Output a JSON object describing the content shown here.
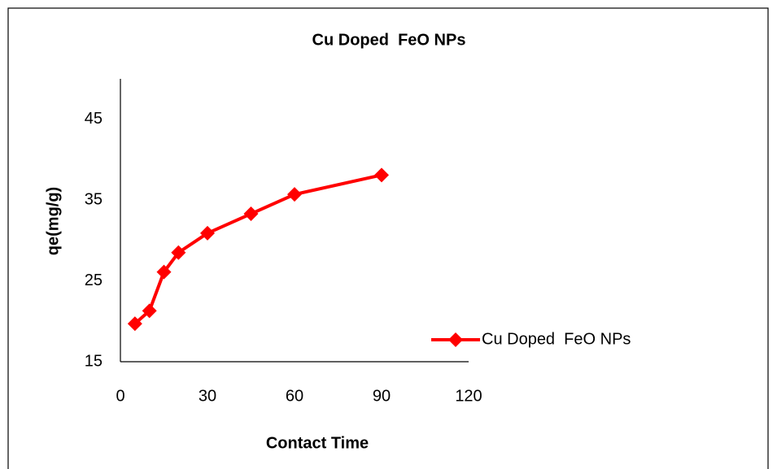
{
  "chart_data": {
    "type": "line",
    "title": "Cu Doped  FeO NPs",
    "x_label": "Contact Time",
    "y_label": "qe(mg/g)",
    "x": [
      5,
      10,
      15,
      20,
      30,
      45,
      60,
      90
    ],
    "series": [
      {
        "name": "Cu Doped  FeO NPs",
        "color": "#ff0000",
        "values": [
          19.7,
          21.3,
          26.1,
          28.5,
          30.9,
          33.3,
          35.7,
          38.1
        ]
      }
    ],
    "xlim": [
      0,
      120
    ],
    "xticks": [
      0,
      30,
      60,
      90,
      120
    ],
    "ylim": [
      15,
      50
    ],
    "yticks": [
      15,
      25,
      35,
      45
    ],
    "grid": false,
    "legend": "right"
  }
}
